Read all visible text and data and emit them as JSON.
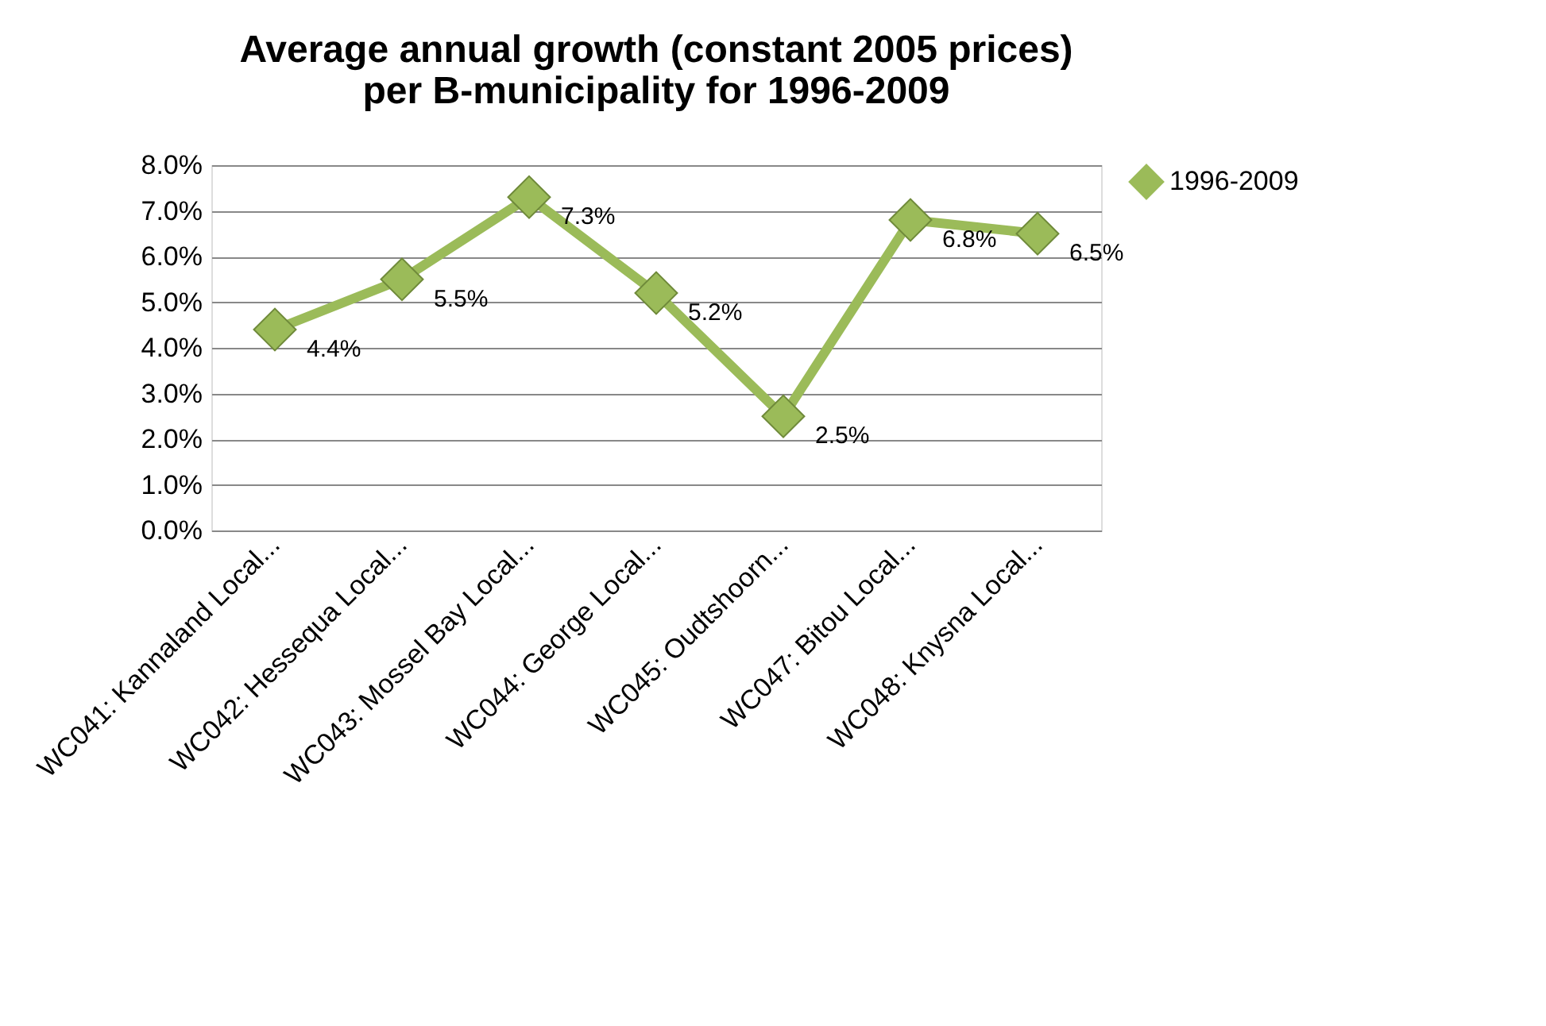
{
  "chart_data": {
    "type": "line",
    "title": "Average annual growth (constant 2005 prices)\nper B-municipality for 1996-2009",
    "categories": [
      "WC041: Kannaland Local...",
      "WC042: Hessequa Local...",
      "WC043: Mossel Bay Local...",
      "WC044: George Local...",
      "WC045: Oudtshoorn...",
      "WC047: Bitou Local...",
      "WC048: Knysna Local..."
    ],
    "series": [
      {
        "name": "1996-2009",
        "color": "#9bbb59",
        "values": [
          4.4,
          5.5,
          7.3,
          5.2,
          2.5,
          6.8,
          6.5
        ],
        "value_labels": [
          "4.4%",
          "5.5%",
          "7.3%",
          "5.2%",
          "2.5%",
          "6.8%",
          "6.5%"
        ]
      }
    ],
    "ylim": [
      0,
      8
    ],
    "yticks": [
      {
        "value": 0,
        "label": "0.0%"
      },
      {
        "value": 1,
        "label": "1.0%"
      },
      {
        "value": 2,
        "label": "2.0%"
      },
      {
        "value": 3,
        "label": "3.0%"
      },
      {
        "value": 4,
        "label": "4.0%"
      },
      {
        "value": 5,
        "label": "5.0%"
      },
      {
        "value": 6,
        "label": "6.0%"
      },
      {
        "value": 7,
        "label": "7.0%"
      },
      {
        "value": 8,
        "label": "8.0%"
      }
    ],
    "grid": "y",
    "legend": "right",
    "marker": "diamond",
    "line_style": "solid"
  }
}
